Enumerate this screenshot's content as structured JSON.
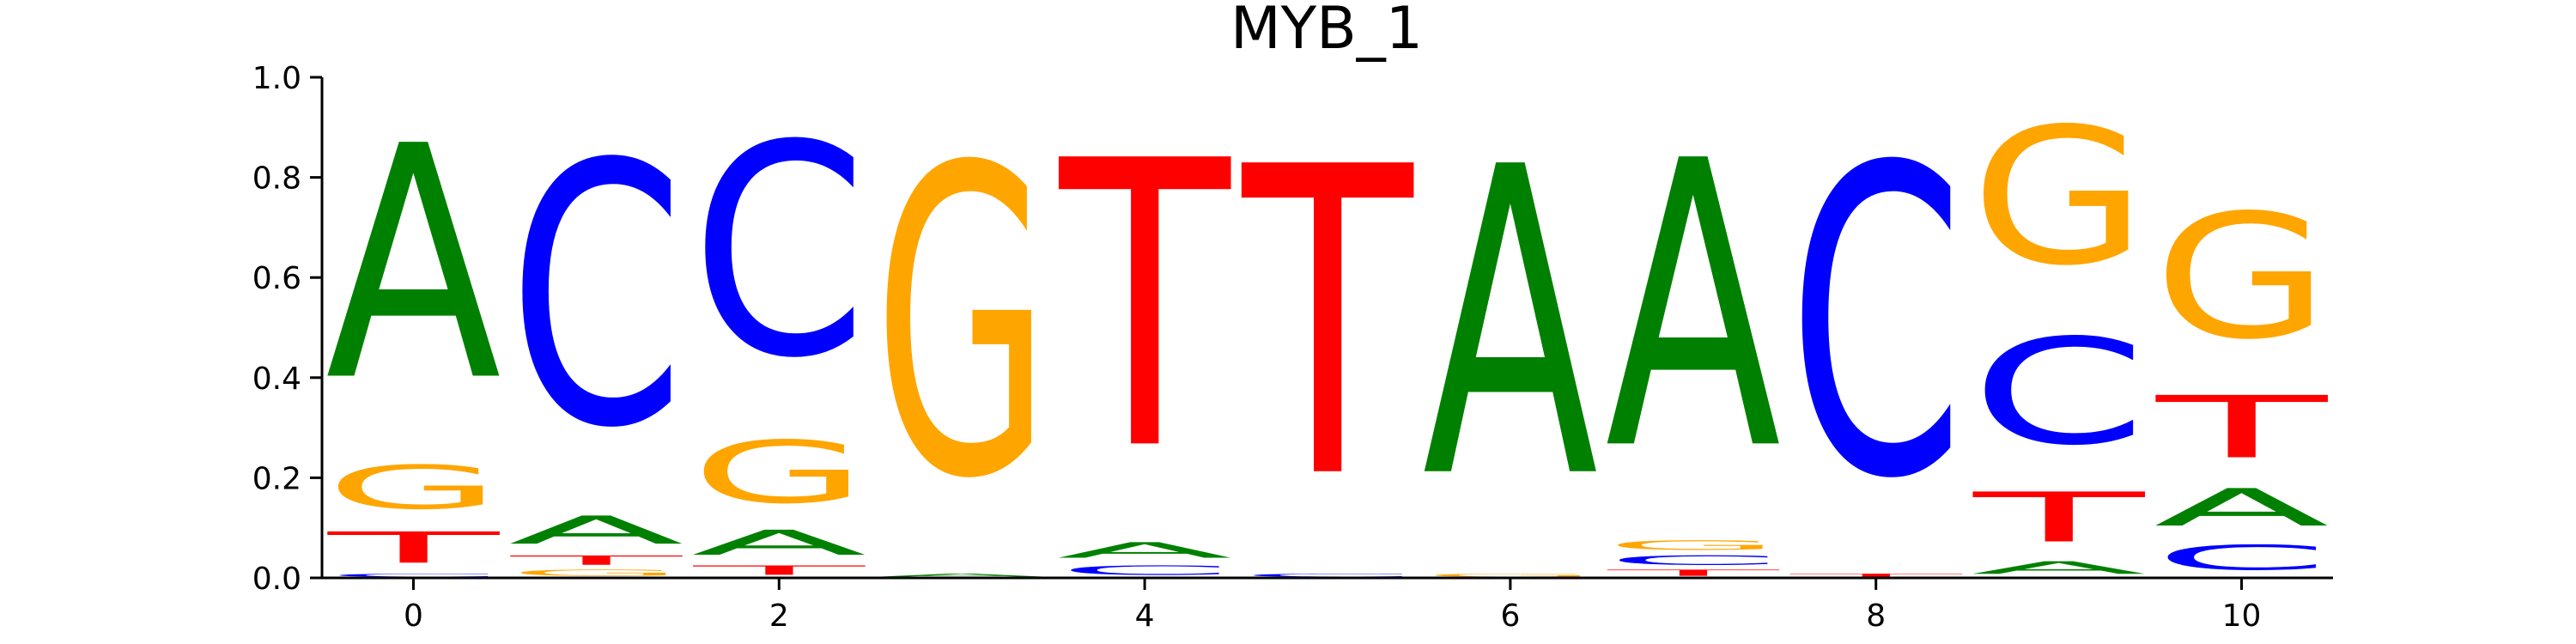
{
  "chart_data": {
    "type": "sequence-logo",
    "title": "MYB_1",
    "xlabel": "",
    "ylabel": "",
    "xlim": [
      -0.5,
      10.5
    ],
    "ylim": [
      0,
      1
    ],
    "x_ticks": [
      0,
      2,
      4,
      6,
      8,
      10
    ],
    "y_ticks": [
      0.0,
      0.2,
      0.4,
      0.6,
      0.8,
      1.0
    ],
    "x_tick_labels": [
      "0",
      "2",
      "4",
      "6",
      "8",
      "10"
    ],
    "y_tick_labels": [
      "0.0",
      "0.2",
      "0.4",
      "0.6",
      "0.8",
      "1.0"
    ],
    "grid": false,
    "colors": {
      "A": "#008000",
      "C": "#0000ff",
      "G": "#ffa500",
      "T": "#ff0000"
    },
    "positions": [
      {
        "x": 0,
        "A": 0.75,
        "C": 0.01,
        "G": 0.14,
        "T": 0.1
      },
      {
        "x": 1,
        "A": 0.09,
        "C": 0.84,
        "G": 0.02,
        "T": 0.03
      },
      {
        "x": 2,
        "A": 0.08,
        "C": 0.68,
        "G": 0.2,
        "T": 0.03
      },
      {
        "x": 3,
        "A": 0.01,
        "C": 0.0,
        "G": 0.99,
        "T": 0.0
      },
      {
        "x": 4,
        "A": 0.05,
        "C": 0.03,
        "G": 0.0,
        "T": 0.92
      },
      {
        "x": 5,
        "A": 0.0,
        "C": 0.01,
        "G": 0.0,
        "T": 0.99
      },
      {
        "x": 6,
        "A": 0.99,
        "C": 0.0,
        "G": 0.01,
        "T": 0.0
      },
      {
        "x": 7,
        "A": 0.92,
        "C": 0.03,
        "G": 0.03,
        "T": 0.02
      },
      {
        "x": 8,
        "A": 0.0,
        "C": 0.99,
        "G": 0.0,
        "T": 0.01
      },
      {
        "x": 9,
        "A": 0.04,
        "C": 0.34,
        "G": 0.44,
        "T": 0.16
      },
      {
        "x": 10,
        "A": 0.12,
        "C": 0.08,
        "G": 0.4,
        "T": 0.2
      }
    ]
  }
}
